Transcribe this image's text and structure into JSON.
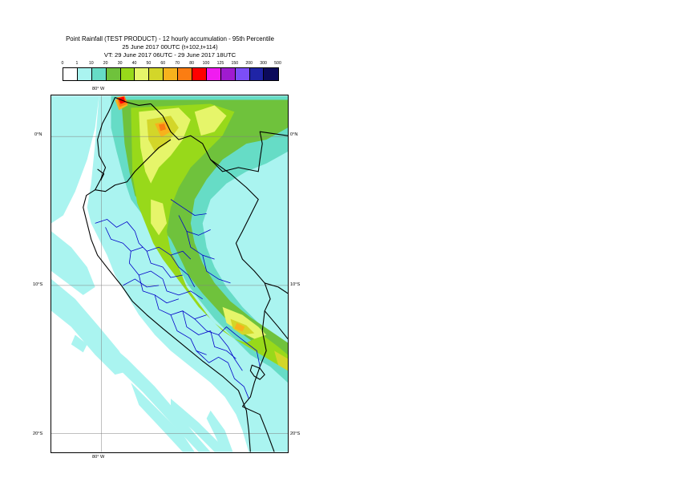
{
  "header": {
    "title": "Point Rainfall (TEST PRODUCT) - 12 hourly accumulation - 95th Percentile",
    "base_time": "25 June 2017 00UTC (t+102,t+114)",
    "valid_time": "VT: 29 June 2017 06UTC - 29 June 2017 18UTC"
  },
  "legend": {
    "thresholds": [
      "0",
      "1",
      "10",
      "20",
      "30",
      "40",
      "50",
      "60",
      "70",
      "80",
      "100",
      "125",
      "150",
      "200",
      "300",
      "500"
    ],
    "colors": [
      "#ffffff",
      "#aaf4f0",
      "#66dcc6",
      "#6fc23c",
      "#98d91a",
      "#e6f56a",
      "#d3d629",
      "#f7b21d",
      "#fb7d12",
      "#ff0000",
      "#f01cf0",
      "#a01bd0",
      "#7c4ef7",
      "#1f24a6",
      "#0c0a5b"
    ]
  },
  "map": {
    "labels": {
      "top_lon": "80° W",
      "bottom_lon": "80° W",
      "lat_left_0": "0°N",
      "lat_right_0": "0°N",
      "lat_left_10": "10°S",
      "lat_right_10": "10°S",
      "lat_left_20": "20°S",
      "lat_right_20": "20°S"
    },
    "colors": {
      "land_background": "#aaf4f0",
      "ocean_background": "#ffffff",
      "country_border": "#000000",
      "region_border": "#0000c8",
      "graticule": "#808080"
    }
  }
}
